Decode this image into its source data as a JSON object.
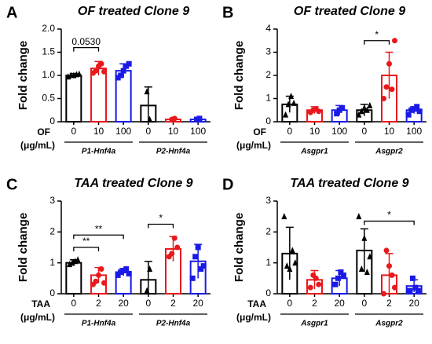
{
  "chart_data": [
    {
      "type": "bar",
      "panel": "A",
      "title": "OF treated Clone 9",
      "ylabel": "Fold change",
      "x_label": "OF",
      "x_unit": "(μg/mL)",
      "categories": [
        "0",
        "10",
        "100",
        "0",
        "10",
        "100"
      ],
      "groups": [
        "P1-Hnf4a",
        "P2-Hnf4a"
      ],
      "colors": [
        "#000000",
        "#e8191c",
        "#1a1ae6",
        "#000000",
        "#e8191c",
        "#1a1ae6"
      ],
      "markers": [
        "triangle",
        "circle",
        "square",
        "triangle",
        "circle",
        "square"
      ],
      "values": [
        1.0,
        1.15,
        1.1,
        0.35,
        0.05,
        0.05
      ],
      "errors": [
        0.04,
        0.15,
        0.15,
        0.4,
        0.02,
        0.02
      ],
      "points": [
        [
          0.97,
          1.0,
          1.0,
          1.02,
          1.03
        ],
        [
          1.05,
          1.1,
          1.2,
          1.25,
          1.08
        ],
        [
          0.95,
          1.0,
          1.1,
          1.2,
          1.25
        ],
        [
          0.65,
          0.05
        ],
        [
          0.05,
          0.07
        ],
        [
          0.05,
          0.07
        ]
      ],
      "ylim": [
        0,
        2
      ],
      "yticks": [
        0,
        0.5,
        {
          "value": 1,
          "label": "1.0"
        },
        1.5,
        {
          "value": 2,
          "label": "2.0"
        }
      ],
      "annotations": [
        {
          "text": "0.0530",
          "from": 0,
          "to": 1,
          "y": 1.6
        }
      ]
    },
    {
      "type": "bar",
      "panel": "B",
      "title": "OF treated Clone 9",
      "ylabel": "Fold change",
      "x_label": "OF",
      "x_unit": "(μg/mL)",
      "categories": [
        "0",
        "10",
        "100",
        "0",
        "10",
        "100"
      ],
      "groups": [
        "Asgpr1",
        "Asgpr2"
      ],
      "colors": [
        "#000000",
        "#e8191c",
        "#1a1ae6",
        "#000000",
        "#e8191c",
        "#1a1ae6"
      ],
      "markers": [
        "triangle",
        "circle",
        "square",
        "triangle",
        "circle",
        "square"
      ],
      "values": [
        0.75,
        0.5,
        0.5,
        0.5,
        2.0,
        0.5
      ],
      "errors": [
        0.35,
        0.15,
        0.2,
        0.25,
        1.0,
        0.15
      ],
      "points": [
        [
          0.3,
          0.75,
          1.1,
          0.8
        ],
        [
          0.4,
          0.5,
          0.55,
          0.45
        ],
        [
          0.35,
          0.5,
          0.6
        ],
        [
          0.3,
          0.45,
          0.6,
          0.5,
          0.7
        ],
        [
          1.0,
          1.5,
          2.5,
          1.4,
          3.5
        ],
        [
          0.3,
          0.5,
          0.55,
          0.65,
          0.45
        ]
      ],
      "ylim": [
        0,
        4
      ],
      "yticks": [
        0,
        1,
        2,
        3,
        4
      ],
      "annotations": [
        {
          "text": "*",
          "from": 3,
          "to": 4,
          "y": 3.5
        }
      ]
    },
    {
      "type": "bar",
      "panel": "C",
      "title": "TAA treated Clone 9",
      "ylabel": "Fold change",
      "x_label": "TAA",
      "x_unit": "(μg/mL)",
      "categories": [
        "0",
        "2",
        "20",
        "0",
        "2",
        "20"
      ],
      "groups": [
        "P1-Hnf4a",
        "P2-Hnf4a"
      ],
      "colors": [
        "#000000",
        "#e8191c",
        "#1a1ae6",
        "#000000",
        "#e8191c",
        "#1a1ae6"
      ],
      "markers": [
        "triangle",
        "circle",
        "square",
        "triangle",
        "circle",
        "square"
      ],
      "values": [
        1.0,
        0.6,
        0.7,
        0.45,
        1.45,
        1.05
      ],
      "errors": [
        0.1,
        0.25,
        0.12,
        0.6,
        0.4,
        0.55
      ],
      "points": [
        [
          0.95,
          1.0,
          1.05,
          1.1
        ],
        [
          0.3,
          0.4,
          0.6,
          0.8,
          0.35
        ],
        [
          0.6,
          0.7,
          0.75,
          0.8,
          0.65
        ],
        [
          0.1,
          0.8
        ],
        [
          1.2,
          1.3,
          1.8,
          1.5
        ],
        [
          0.5,
          1.2,
          1.5,
          0.8,
          0.9
        ]
      ],
      "ylim": [
        0,
        3
      ],
      "yticks": [
        0,
        1,
        2,
        3
      ],
      "annotations": [
        {
          "text": "**",
          "from": 0,
          "to": 1,
          "y": 1.5
        },
        {
          "text": "**",
          "from": 0,
          "to": 2,
          "y": 1.9
        },
        {
          "text": "*",
          "from": 3,
          "to": 4,
          "y": 2.25
        }
      ]
    },
    {
      "type": "bar",
      "panel": "D",
      "title": "TAA treated Clone 9",
      "ylabel": "Fold change",
      "x_label": "TAA",
      "x_unit": "(μg/mL)",
      "categories": [
        "0",
        "2",
        "20",
        "0",
        "2",
        "20"
      ],
      "groups": [
        "Asgpr1",
        "Asgpr2"
      ],
      "colors": [
        "#000000",
        "#e8191c",
        "#1a1ae6",
        "#000000",
        "#e8191c",
        "#1a1ae6"
      ],
      "markers": [
        "triangle",
        "circle",
        "square",
        "triangle",
        "circle",
        "square"
      ],
      "values": [
        1.3,
        0.45,
        0.5,
        1.4,
        0.6,
        0.25
      ],
      "errors": [
        0.85,
        0.3,
        0.25,
        0.7,
        0.7,
        0.2
      ],
      "points": [
        [
          2.5,
          0.9,
          0.8,
          1.4,
          1.0
        ],
        [
          0.2,
          0.6,
          0.5,
          0.3
        ],
        [
          0.3,
          0.5,
          0.7,
          0.6
        ],
        [
          2.5,
          0.8,
          1.8,
          0.7,
          1.2
        ],
        [
          0.0,
          1.4,
          0.9,
          0.6,
          0.2
        ],
        [
          0.1,
          0.5,
          0.2,
          0.1
        ]
      ],
      "ylim": [
        0,
        3
      ],
      "yticks": [
        0,
        1,
        2,
        3
      ],
      "annotations": [
        {
          "text": "*",
          "from": 3,
          "to": 5,
          "y": 2.35
        }
      ]
    }
  ]
}
